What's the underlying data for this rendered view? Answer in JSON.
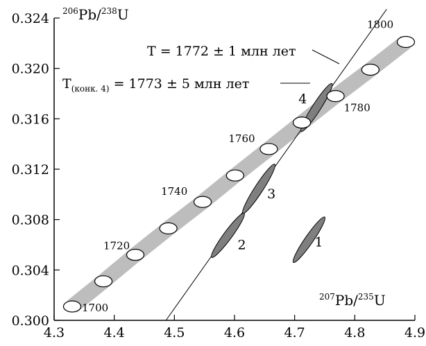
{
  "chart_data": {
    "type": "scatter",
    "title": "",
    "xlabel": {
      "pre": "207",
      "main": "Pb/",
      "sup2": "235",
      "post": "U"
    },
    "ylabel": {
      "pre": "206",
      "main": "Pb/",
      "sup2": "238",
      "post": "U"
    },
    "xlim": [
      4.3,
      4.9
    ],
    "ylim": [
      0.3,
      0.324
    ],
    "x_ticks": [
      {
        "value": 4.3,
        "label": "4.3"
      },
      {
        "value": 4.4,
        "label": "4.4"
      },
      {
        "value": 4.5,
        "label": "4.5"
      },
      {
        "value": 4.6,
        "label": "4.6"
      },
      {
        "value": 4.7,
        "label": "4.7"
      },
      {
        "value": 4.8,
        "label": "4.8"
      },
      {
        "value": 4.9,
        "label": "4.9"
      }
    ],
    "y_ticks": [
      {
        "value": 0.3,
        "label": "0.300"
      },
      {
        "value": 0.304,
        "label": "0.304"
      },
      {
        "value": 0.308,
        "label": "0.308"
      },
      {
        "value": 0.312,
        "label": "0.312"
      },
      {
        "value": 0.316,
        "label": "0.316"
      },
      {
        "value": 0.32,
        "label": "0.320"
      },
      {
        "value": 0.324,
        "label": "0.324"
      }
    ],
    "concordia_band_color": "#bdbdbd",
    "concordia_points": [
      {
        "age": 1700,
        "x": 4.33,
        "y": 0.3011,
        "label": "1700",
        "show": true
      },
      {
        "age": 1710,
        "x": 4.382,
        "y": 0.3031,
        "label": "",
        "show": false
      },
      {
        "age": 1720,
        "x": 4.435,
        "y": 0.3052,
        "label": "1720",
        "show": true
      },
      {
        "age": 1730,
        "x": 4.49,
        "y": 0.3073,
        "label": "",
        "show": false
      },
      {
        "age": 1740,
        "x": 4.547,
        "y": 0.3094,
        "label": "1740",
        "show": true
      },
      {
        "age": 1750,
        "x": 4.601,
        "y": 0.3115,
        "label": "",
        "show": false
      },
      {
        "age": 1760,
        "x": 4.657,
        "y": 0.3136,
        "label": "1760",
        "show": true
      },
      {
        "age": 1770,
        "x": 4.712,
        "y": 0.3157,
        "label": "",
        "show": false
      },
      {
        "age": 1780,
        "x": 4.768,
        "y": 0.3178,
        "label": "1780",
        "show": true
      },
      {
        "age": 1790,
        "x": 4.826,
        "y": 0.3199,
        "label": "",
        "show": false
      },
      {
        "age": 1800,
        "x": 4.885,
        "y": 0.3221,
        "label": "1800",
        "show": true
      }
    ],
    "discordia_line": {
      "x1": 4.486,
      "y1": 0.3,
      "x2": 4.853,
      "y2": 0.3247
    },
    "ellipse_color": "#7f7f7f",
    "ellipses": [
      {
        "id": "1",
        "label": "1",
        "x1": 4.698,
        "y1": 0.3046,
        "x2": 4.75,
        "y2": 0.3082
      },
      {
        "id": "2",
        "label": "2",
        "x1": 4.562,
        "y1": 0.305,
        "x2": 4.616,
        "y2": 0.3085
      },
      {
        "id": "3",
        "label": "3",
        "x1": 4.614,
        "y1": 0.3085,
        "x2": 4.667,
        "y2": 0.3124
      },
      {
        "id": "4",
        "label": "4",
        "x1": 4.711,
        "y1": 0.315,
        "x2": 4.762,
        "y2": 0.3188
      }
    ],
    "annotations": {
      "t_discordia": "T = 1772 ± 1 млн лет",
      "t_conc_pre": "T",
      "t_conc_sub": "(конк. 4)",
      "t_conc_post": " = 1773 ± 5 млн лет"
    }
  }
}
